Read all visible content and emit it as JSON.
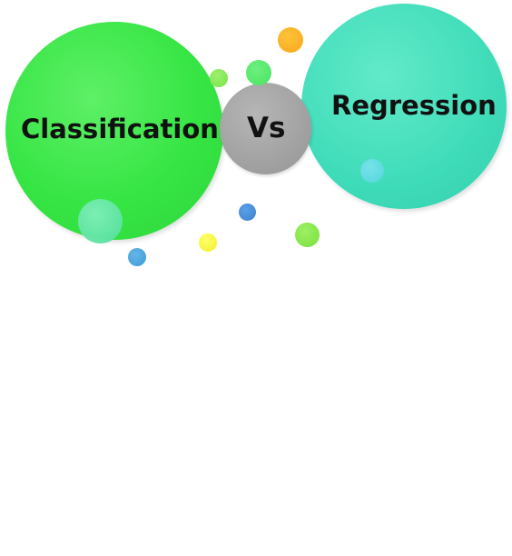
{
  "diagram": {
    "left_label": "Classification",
    "middle_label": "Vs",
    "right_label": "Regression"
  },
  "colors": {
    "left_bubble": "#36e544",
    "right_bubble": "#3fdcb9",
    "middle_bubble": "#a2a2a2",
    "text": "#111111",
    "accent_orange": "#f7a81a",
    "accent_yellow": "#f2ee2a",
    "accent_blue": "#3b80cf",
    "accent_cyan": "#56d3df"
  }
}
